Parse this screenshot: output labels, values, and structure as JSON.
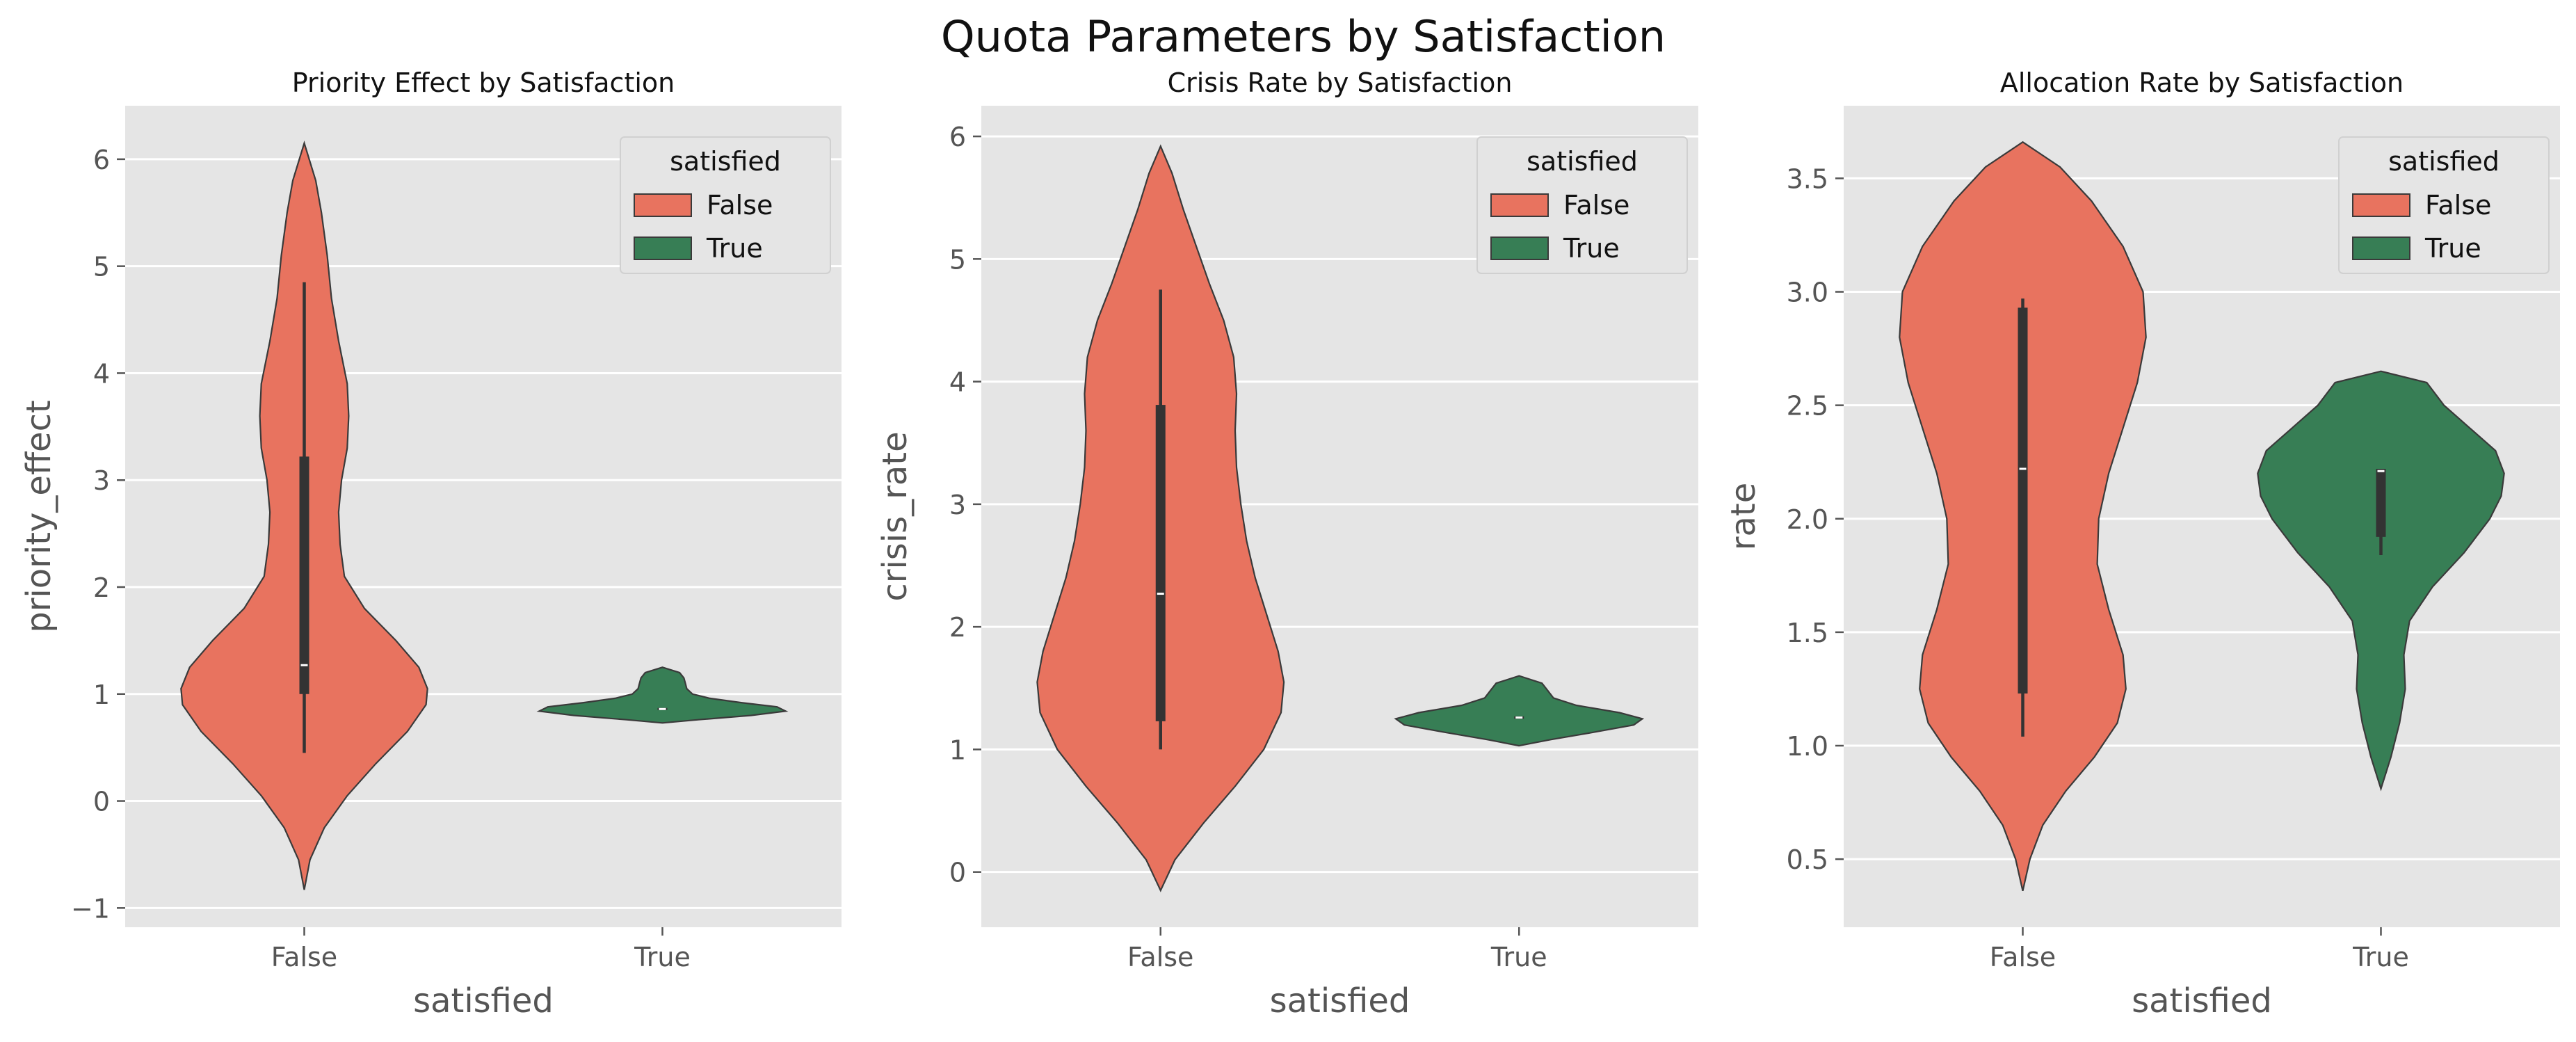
{
  "figure": {
    "title": "Quota Parameters by Satisfaction"
  },
  "colors": {
    "False": "#E8735F",
    "True": "#377E55",
    "panel_bg": "#E5E5E5",
    "grid": "#FFFFFF",
    "outline": "#3A3A3A",
    "box": "#333333",
    "median": "#FFFFFF",
    "tick_text": "#555555",
    "label_text": "#555555",
    "title_text": "#111111"
  },
  "chart_data": [
    {
      "type": "violin",
      "title": "Priority Effect by Satisfaction",
      "xlabel": "satisfied",
      "ylabel": "priority_effect",
      "categories": [
        "False",
        "True"
      ],
      "ylim": [
        -1.18,
        6.5
      ],
      "yticks": [
        -1,
        0,
        1,
        2,
        3,
        4,
        5,
        6
      ],
      "yticklabels": [
        "−1",
        "0",
        "1",
        "2",
        "3",
        "4",
        "5",
        "6"
      ],
      "grid": true,
      "legend": {
        "title": "satisfied",
        "position": "top-right",
        "entries": [
          "False",
          "True"
        ]
      },
      "violins": [
        {
          "category": "False",
          "min": -0.83,
          "max": 6.15,
          "profile": [
            [
              -0.83,
              0.0
            ],
            [
              -0.55,
              0.04
            ],
            [
              -0.25,
              0.14
            ],
            [
              0.05,
              0.3
            ],
            [
              0.35,
              0.5
            ],
            [
              0.65,
              0.72
            ],
            [
              0.9,
              0.85
            ],
            [
              1.05,
              0.86
            ],
            [
              1.25,
              0.8
            ],
            [
              1.5,
              0.64
            ],
            [
              1.8,
              0.42
            ],
            [
              2.1,
              0.28
            ],
            [
              2.4,
              0.25
            ],
            [
              2.7,
              0.24
            ],
            [
              3.0,
              0.26
            ],
            [
              3.3,
              0.3
            ],
            [
              3.6,
              0.31
            ],
            [
              3.9,
              0.3
            ],
            [
              4.3,
              0.24
            ],
            [
              4.7,
              0.19
            ],
            [
              5.1,
              0.16
            ],
            [
              5.5,
              0.12
            ],
            [
              5.8,
              0.08
            ],
            [
              6.15,
              0.0
            ]
          ],
          "box": {
            "q1": 1.0,
            "median": 1.27,
            "q3": 3.22,
            "whisker_low": 0.45,
            "whisker_high": 4.85
          }
        },
        {
          "category": "True",
          "min": 0.73,
          "max": 1.25,
          "profile": [
            [
              0.73,
              0.0
            ],
            [
              0.76,
              0.25
            ],
            [
              0.8,
              0.62
            ],
            [
              0.84,
              0.86
            ],
            [
              0.88,
              0.8
            ],
            [
              0.92,
              0.55
            ],
            [
              0.96,
              0.33
            ],
            [
              1.0,
              0.21
            ],
            [
              1.05,
              0.17
            ],
            [
              1.1,
              0.16
            ],
            [
              1.15,
              0.15
            ],
            [
              1.2,
              0.12
            ],
            [
              1.25,
              0.0
            ]
          ],
          "box": {
            "q1": 0.85,
            "median": 0.86,
            "q3": 0.87,
            "whisker_low": 0.85,
            "whisker_high": 0.87
          }
        }
      ]
    },
    {
      "type": "violin",
      "title": "Crisis Rate by Satisfaction",
      "xlabel": "satisfied",
      "ylabel": "crisis_rate",
      "categories": [
        "False",
        "True"
      ],
      "ylim": [
        -0.45,
        6.25
      ],
      "yticks": [
        0,
        1,
        2,
        3,
        4,
        5,
        6
      ],
      "yticklabels": [
        "0",
        "1",
        "2",
        "3",
        "4",
        "5",
        "6"
      ],
      "grid": true,
      "legend": {
        "title": "satisfied",
        "position": "top-right",
        "entries": [
          "False",
          "True"
        ]
      },
      "violins": [
        {
          "category": "False",
          "min": -0.15,
          "max": 5.92,
          "profile": [
            [
              -0.15,
              0.0
            ],
            [
              0.1,
              0.1
            ],
            [
              0.4,
              0.3
            ],
            [
              0.7,
              0.52
            ],
            [
              1.0,
              0.72
            ],
            [
              1.3,
              0.84
            ],
            [
              1.55,
              0.86
            ],
            [
              1.8,
              0.82
            ],
            [
              2.1,
              0.74
            ],
            [
              2.4,
              0.66
            ],
            [
              2.7,
              0.6
            ],
            [
              3.0,
              0.56
            ],
            [
              3.3,
              0.53
            ],
            [
              3.6,
              0.52
            ],
            [
              3.9,
              0.53
            ],
            [
              4.2,
              0.51
            ],
            [
              4.5,
              0.44
            ],
            [
              4.8,
              0.34
            ],
            [
              5.1,
              0.25
            ],
            [
              5.4,
              0.16
            ],
            [
              5.7,
              0.08
            ],
            [
              5.92,
              0.0
            ]
          ],
          "box": {
            "q1": 1.23,
            "median": 2.27,
            "q3": 3.81,
            "whisker_low": 1.0,
            "whisker_high": 4.75
          }
        },
        {
          "category": "True",
          "min": 1.03,
          "max": 1.6,
          "profile": [
            [
              1.03,
              0.0
            ],
            [
              1.08,
              0.22
            ],
            [
              1.14,
              0.52
            ],
            [
              1.2,
              0.8
            ],
            [
              1.25,
              0.86
            ],
            [
              1.3,
              0.7
            ],
            [
              1.36,
              0.4
            ],
            [
              1.42,
              0.24
            ],
            [
              1.48,
              0.2
            ],
            [
              1.54,
              0.16
            ],
            [
              1.6,
              0.0
            ]
          ],
          "box": {
            "q1": 1.25,
            "median": 1.26,
            "q3": 1.27,
            "whisker_low": 1.25,
            "whisker_high": 1.27
          }
        }
      ]
    },
    {
      "type": "violin",
      "title": "Allocation Rate by Satisfaction",
      "xlabel": "satisfied",
      "ylabel": "rate",
      "categories": [
        "False",
        "True"
      ],
      "ylim": [
        0.2,
        3.82
      ],
      "yticks": [
        0.5,
        1.0,
        1.5,
        2.0,
        2.5,
        3.0,
        3.5
      ],
      "yticklabels": [
        "0.5",
        "1.0",
        "1.5",
        "2.0",
        "2.5",
        "3.0",
        "3.5"
      ],
      "grid": true,
      "legend": {
        "title": "satisfied",
        "position": "top-right",
        "entries": [
          "False",
          "True"
        ]
      },
      "violins": [
        {
          "category": "False",
          "min": 0.36,
          "max": 3.66,
          "profile": [
            [
              0.36,
              0.0
            ],
            [
              0.5,
              0.05
            ],
            [
              0.65,
              0.14
            ],
            [
              0.8,
              0.3
            ],
            [
              0.95,
              0.5
            ],
            [
              1.1,
              0.66
            ],
            [
              1.25,
              0.72
            ],
            [
              1.4,
              0.7
            ],
            [
              1.6,
              0.6
            ],
            [
              1.8,
              0.52
            ],
            [
              2.0,
              0.53
            ],
            [
              2.2,
              0.6
            ],
            [
              2.4,
              0.7
            ],
            [
              2.6,
              0.8
            ],
            [
              2.8,
              0.86
            ],
            [
              3.0,
              0.84
            ],
            [
              3.2,
              0.7
            ],
            [
              3.4,
              0.48
            ],
            [
              3.55,
              0.26
            ],
            [
              3.66,
              0.0
            ]
          ],
          "box": {
            "q1": 1.23,
            "median": 2.22,
            "q3": 2.93,
            "whisker_low": 1.04,
            "whisker_high": 2.97
          }
        },
        {
          "category": "True",
          "min": 0.81,
          "max": 2.65,
          "profile": [
            [
              0.81,
              0.0
            ],
            [
              0.95,
              0.07
            ],
            [
              1.1,
              0.13
            ],
            [
              1.25,
              0.17
            ],
            [
              1.4,
              0.16
            ],
            [
              1.55,
              0.2
            ],
            [
              1.7,
              0.36
            ],
            [
              1.85,
              0.58
            ],
            [
              2.0,
              0.76
            ],
            [
              2.1,
              0.84
            ],
            [
              2.2,
              0.86
            ],
            [
              2.3,
              0.8
            ],
            [
              2.4,
              0.62
            ],
            [
              2.5,
              0.44
            ],
            [
              2.6,
              0.32
            ],
            [
              2.65,
              0.0
            ]
          ],
          "box": {
            "q1": 1.92,
            "median": 2.21,
            "q3": 2.22,
            "whisker_low": 1.84,
            "whisker_high": 2.22
          }
        }
      ]
    }
  ]
}
